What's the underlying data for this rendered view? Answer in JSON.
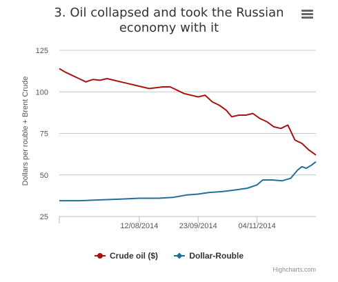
{
  "title": "3. Oil collapsed and took the Russian economy with it",
  "menu_icon": "hamburger-menu-icon",
  "credits": "Highcharts.com",
  "chart_data": {
    "type": "line",
    "title": "3. Oil collapsed and took the Russian economy with it",
    "ylabel": "Dollars per rouble + Brent Crude",
    "xlabel": "",
    "ylim": [
      25,
      125
    ],
    "yticks": [
      25,
      50,
      75,
      100,
      125
    ],
    "xlim": [
      "2014-06-16",
      "2014-12-16"
    ],
    "xticks": [
      {
        "date": "2014-08-12",
        "label": "12/08/2014"
      },
      {
        "date": "2014-09-23",
        "label": "23/09/2014"
      },
      {
        "date": "2014-11-04",
        "label": "04/11/2014"
      }
    ],
    "grid": "horizontal",
    "legend_position": "bottom",
    "series": [
      {
        "name": "Crude oil ($)",
        "color": "#aa1111",
        "marker": "circle",
        "points": [
          [
            "2014-06-16",
            114
          ],
          [
            "2014-06-20",
            112
          ],
          [
            "2014-06-25",
            110
          ],
          [
            "2014-06-30",
            108
          ],
          [
            "2014-07-05",
            106
          ],
          [
            "2014-07-10",
            107.5
          ],
          [
            "2014-07-15",
            107
          ],
          [
            "2014-07-20",
            108
          ],
          [
            "2014-07-25",
            107
          ],
          [
            "2014-07-30",
            106
          ],
          [
            "2014-08-04",
            105
          ],
          [
            "2014-08-09",
            104
          ],
          [
            "2014-08-14",
            103
          ],
          [
            "2014-08-19",
            102
          ],
          [
            "2014-08-24",
            102.5
          ],
          [
            "2014-08-29",
            103
          ],
          [
            "2014-09-03",
            103
          ],
          [
            "2014-09-08",
            101
          ],
          [
            "2014-09-13",
            99
          ],
          [
            "2014-09-18",
            98
          ],
          [
            "2014-09-23",
            97
          ],
          [
            "2014-09-28",
            98
          ],
          [
            "2014-10-03",
            94
          ],
          [
            "2014-10-08",
            92
          ],
          [
            "2014-10-13",
            89
          ],
          [
            "2014-10-17",
            85
          ],
          [
            "2014-10-22",
            86
          ],
          [
            "2014-10-27",
            86
          ],
          [
            "2014-11-01",
            87
          ],
          [
            "2014-11-06",
            84
          ],
          [
            "2014-11-11",
            82
          ],
          [
            "2014-11-16",
            79
          ],
          [
            "2014-11-21",
            78
          ],
          [
            "2014-11-26",
            80
          ],
          [
            "2014-12-01",
            71
          ],
          [
            "2014-12-06",
            69
          ],
          [
            "2014-12-11",
            65
          ],
          [
            "2014-12-16",
            62
          ]
        ]
      },
      {
        "name": "Dollar-Rouble",
        "color": "#1f6f9a",
        "marker": "diamond",
        "points": [
          [
            "2014-06-16",
            34.5
          ],
          [
            "2014-06-30",
            34.5
          ],
          [
            "2014-07-15",
            35
          ],
          [
            "2014-07-30",
            35.5
          ],
          [
            "2014-08-12",
            36
          ],
          [
            "2014-08-26",
            36
          ],
          [
            "2014-09-05",
            36.5
          ],
          [
            "2014-09-15",
            38
          ],
          [
            "2014-09-23",
            38.5
          ],
          [
            "2014-10-01",
            39.5
          ],
          [
            "2014-10-10",
            40
          ],
          [
            "2014-10-20",
            41
          ],
          [
            "2014-10-28",
            42
          ],
          [
            "2014-11-04",
            44
          ],
          [
            "2014-11-08",
            47
          ],
          [
            "2014-11-15",
            47
          ],
          [
            "2014-11-22",
            46.5
          ],
          [
            "2014-11-28",
            48
          ],
          [
            "2014-12-03",
            53
          ],
          [
            "2014-12-06",
            55
          ],
          [
            "2014-12-09",
            54
          ],
          [
            "2014-12-13",
            56
          ],
          [
            "2014-12-16",
            58
          ]
        ]
      }
    ]
  }
}
